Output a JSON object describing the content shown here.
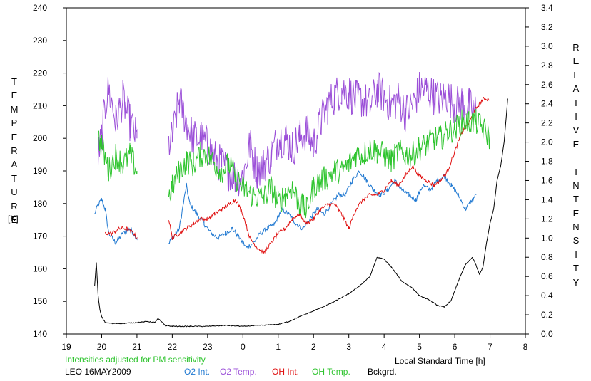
{
  "chart_data": {
    "type": "line",
    "xlabel": "Local Standard Time [h]",
    "y_left_label": "TEMPERATURE",
    "y_left_unit": "[K]",
    "y_right_label": "RELATIVE INTENSITY",
    "x_ticks": [
      "19",
      "20",
      "21",
      "22",
      "23",
      "0",
      "1",
      "2",
      "3",
      "4",
      "5",
      "6",
      "7",
      "8"
    ],
    "x_range": [
      19,
      32
    ],
    "y_left_ticks": [
      "140",
      "150",
      "160",
      "170",
      "180",
      "190",
      "200",
      "210",
      "220",
      "230",
      "240"
    ],
    "y_left_range": [
      140,
      240
    ],
    "y_right_ticks": [
      "0.0",
      "0.2",
      "0.4",
      "0.6",
      "0.8",
      "1.0",
      "1.2",
      "1.4",
      "1.6",
      "1.8",
      "2.0",
      "2.2",
      "2.4",
      "2.6",
      "2.8",
      "3.0",
      "3.2",
      "3.4"
    ],
    "y_right_range": [
      0,
      3.4
    ],
    "note": "Intensities adjusted for PM sensitivity",
    "station": "LEO 16MAY2009",
    "legend_position": "bottom",
    "grid": false,
    "series": [
      {
        "name": "O2 Int.",
        "color": "#1f78d1",
        "axis": "right",
        "noise": 0.025,
        "segments": [
          {
            "x": [
              19.8,
              19.9,
              20.0,
              20.1,
              20.2,
              20.4,
              20.6,
              20.8,
              21.0
            ],
            "y": [
              1.25,
              1.35,
              1.4,
              1.3,
              1.05,
              0.95,
              1.05,
              1.1,
              1.0
            ]
          },
          {
            "x": [
              21.9,
              22.0,
              22.1,
              22.2,
              22.4,
              22.5,
              22.7,
              22.9,
              23.1,
              23.3,
              23.5,
              23.7,
              23.9,
              24.1,
              24.3,
              24.5,
              24.7,
              24.9,
              25.1,
              25.3,
              25.5,
              25.7,
              25.9,
              26.1,
              26.3,
              26.5,
              26.7,
              26.9,
              27.1,
              27.3,
              27.5,
              27.7,
              27.9,
              28.1,
              28.3,
              28.5,
              28.7,
              28.9,
              29.1,
              29.3,
              29.5,
              29.7,
              29.9,
              30.1,
              30.3,
              30.5,
              30.6
            ],
            "y": [
              0.95,
              1.0,
              1.05,
              1.1,
              1.55,
              1.35,
              1.25,
              1.15,
              1.05,
              1.0,
              1.05,
              1.1,
              1.0,
              0.9,
              0.95,
              1.05,
              1.1,
              1.15,
              1.3,
              1.25,
              1.15,
              1.1,
              1.2,
              1.3,
              1.25,
              1.35,
              1.45,
              1.45,
              1.6,
              1.7,
              1.6,
              1.5,
              1.45,
              1.5,
              1.6,
              1.5,
              1.45,
              1.4,
              1.55,
              1.5,
              1.6,
              1.65,
              1.55,
              1.45,
              1.3,
              1.4,
              1.45
            ]
          }
        ]
      },
      {
        "name": "O2 Temp.",
        "color": "#9b4fd8",
        "axis": "left",
        "noise": 6,
        "segments": [
          {
            "x": [
              19.9,
              20.0,
              20.1,
              20.2,
              20.4,
              20.6,
              20.8,
              21.0
            ],
            "y": [
              195,
              200,
              210,
              215,
              205,
              212,
              205,
              200
            ]
          },
          {
            "x": [
              21.9,
              22.0,
              22.2,
              22.4,
              22.6,
              22.8,
              23.0,
              23.2,
              23.4,
              23.6,
              23.8,
              24.0,
              24.2,
              24.4,
              24.6,
              24.8,
              25.0,
              25.2,
              25.4,
              25.6,
              25.8,
              26.0,
              26.2,
              26.4,
              26.6,
              26.8,
              27.0,
              27.2,
              27.4,
              27.6,
              27.8,
              28.0,
              28.2,
              28.4,
              28.6,
              28.8,
              29.0,
              29.2,
              29.4,
              29.6,
              29.8,
              30.0,
              30.2,
              30.4,
              30.6
            ],
            "y": [
              198,
              200,
              212,
              205,
              200,
              200,
              198,
              194,
              192,
              190,
              188,
              188,
              198,
              190,
              192,
              195,
              200,
              200,
              197,
              200,
              202,
              198,
              205,
              210,
              213,
              215,
              214,
              212,
              212,
              210,
              215,
              213,
              210,
              212,
              208,
              210,
              215,
              215,
              213,
              212,
              213,
              210,
              211,
              210,
              208
            ]
          }
        ]
      },
      {
        "name": "OH Int.",
        "color": "#e01010",
        "axis": "right",
        "noise": 0.02,
        "segments": [
          {
            "x": [
              20.1,
              20.3,
              20.5,
              20.7,
              20.9,
              21.0
            ],
            "y": [
              1.05,
              1.05,
              1.1,
              1.1,
              1.05,
              1.0
            ]
          },
          {
            "x": [
              21.9,
              22.0,
              22.2,
              22.4,
              22.6,
              22.8,
              23.0,
              23.2,
              23.4,
              23.6,
              23.8,
              24.0,
              24.2,
              24.4,
              24.6,
              24.8,
              25.0,
              25.2,
              25.4,
              25.6,
              25.8,
              26.0,
              26.2,
              26.4,
              26.6,
              26.8,
              27.0,
              27.2,
              27.4,
              27.6,
              27.8,
              28.0,
              28.2,
              28.4,
              28.6,
              28.8,
              29.0,
              29.2,
              29.4,
              29.6,
              29.8,
              30.0,
              30.2,
              30.4,
              30.6,
              30.8,
              31.0
            ],
            "y": [
              1.2,
              1.0,
              1.05,
              1.1,
              1.15,
              1.2,
              1.2,
              1.25,
              1.3,
              1.35,
              1.4,
              1.25,
              1.0,
              0.9,
              0.85,
              0.95,
              1.05,
              1.1,
              1.2,
              1.25,
              1.15,
              1.2,
              1.3,
              1.35,
              1.35,
              1.25,
              1.1,
              1.3,
              1.4,
              1.45,
              1.45,
              1.5,
              1.6,
              1.55,
              1.65,
              1.75,
              1.65,
              1.6,
              1.55,
              1.6,
              1.7,
              1.9,
              2.1,
              2.2,
              2.35,
              2.45,
              2.45
            ]
          }
        ]
      },
      {
        "name": "OH Temp.",
        "color": "#2ec42e",
        "axis": "left",
        "noise": 4,
        "segments": [
          {
            "x": [
              19.9,
              20.0,
              20.2,
              20.4,
              20.6,
              20.8,
              21.0
            ],
            "y": [
              200,
              198,
              190,
              195,
              192,
              195,
              190
            ]
          },
          {
            "x": [
              21.9,
              22.0,
              22.2,
              22.4,
              22.6,
              22.8,
              23.0,
              23.2,
              23.4,
              23.6,
              23.8,
              24.0,
              24.2,
              24.4,
              24.6,
              24.8,
              25.0,
              25.2,
              25.4,
              25.6,
              25.8,
              26.0,
              26.2,
              26.4,
              26.6,
              26.8,
              27.0,
              27.2,
              27.4,
              27.6,
              27.8,
              28.0,
              28.2,
              28.4,
              28.6,
              28.8,
              29.0,
              29.2,
              29.4,
              29.6,
              29.8,
              30.0,
              30.2,
              30.4,
              30.6,
              30.8,
              31.0
            ],
            "y": [
              182,
              185,
              190,
              193,
              192,
              195,
              195,
              192,
              190,
              192,
              188,
              185,
              183,
              182,
              182,
              185,
              180,
              183,
              185,
              180,
              178,
              185,
              187,
              188,
              190,
              190,
              192,
              195,
              195,
              197,
              196,
              195,
              193,
              196,
              195,
              195,
              197,
              198,
              200,
              200,
              202,
              203,
              205,
              205,
              205,
              203,
              200
            ]
          }
        ]
      },
      {
        "name": "Bckgrd.",
        "color": "#000000",
        "axis": "right",
        "noise": 0.004,
        "segments": [
          {
            "x": [
              19.8,
              19.85,
              19.9,
              19.95,
              20.0,
              20.1,
              20.3,
              20.6,
              21.0,
              21.3,
              21.5,
              21.6,
              21.8,
              22.0,
              22.5,
              23.0,
              23.5,
              24.0,
              24.5,
              25.0,
              25.3,
              25.6,
              26.0,
              26.5,
              27.0,
              27.3,
              27.6,
              27.8,
              28.0,
              28.2,
              28.5,
              28.8,
              29.0,
              29.3,
              29.5,
              29.7,
              29.9,
              30.1,
              30.3,
              30.5,
              30.6,
              30.7,
              30.8,
              30.9,
              31.0,
              31.1,
              31.2,
              31.3,
              31.4,
              31.5
            ],
            "y": [
              0.5,
              0.75,
              0.4,
              0.25,
              0.18,
              0.12,
              0.11,
              0.11,
              0.12,
              0.13,
              0.12,
              0.16,
              0.09,
              0.08,
              0.08,
              0.08,
              0.09,
              0.08,
              0.09,
              0.1,
              0.13,
              0.18,
              0.24,
              0.32,
              0.42,
              0.5,
              0.6,
              0.8,
              0.78,
              0.7,
              0.55,
              0.48,
              0.4,
              0.35,
              0.3,
              0.28,
              0.35,
              0.55,
              0.72,
              0.8,
              0.72,
              0.62,
              0.7,
              0.95,
              1.15,
              1.3,
              1.6,
              1.75,
              2.0,
              2.45
            ]
          }
        ]
      }
    ]
  }
}
